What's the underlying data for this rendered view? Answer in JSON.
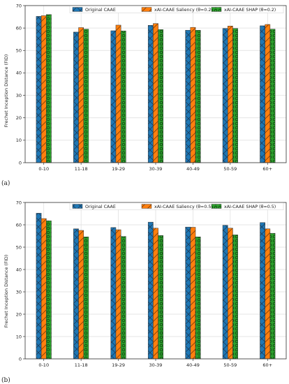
{
  "colors": {
    "original": "#1f77b4",
    "saliency": "#ff7f0e",
    "shap": "#2ca02c"
  },
  "chart_data": [
    {
      "panel_label": "(a)",
      "type": "bar",
      "categories": [
        "0-10",
        "11-18",
        "19-29",
        "30-39",
        "40-49",
        "50-59",
        "60+"
      ],
      "ylabel": "Frechet Inception Distance (FID)",
      "ylim": [
        0,
        70
      ],
      "yticks": [
        0,
        10,
        20,
        30,
        40,
        50,
        60,
        70
      ],
      "grid": true,
      "legend": "top",
      "series": [
        {
          "name": "Original CAAE",
          "color": "#1f77b4",
          "hatch": "cross",
          "values": [
            65.2,
            58.2,
            58.8,
            61.2,
            59.0,
            59.8,
            61.0
          ]
        },
        {
          "name": "xAI-CAAE Saliency (θ=0.2)",
          "color": "#ff7f0e",
          "hatch": "diag",
          "values": [
            65.5,
            60.2,
            61.3,
            62.0,
            60.3,
            60.9,
            61.6
          ]
        },
        {
          "name": "xAI-CAAE SHAP (θ=0.2)",
          "color": "#2ca02c",
          "hatch": "circle",
          "values": [
            66.0,
            59.5,
            58.7,
            59.3,
            59.0,
            59.8,
            59.5
          ]
        }
      ]
    },
    {
      "panel_label": "(b)",
      "type": "bar",
      "categories": [
        "0-10",
        "11-18",
        "19-29",
        "30-39",
        "40-49",
        "50-59",
        "60+"
      ],
      "ylabel": "Frechet Inception Distance (FID)",
      "ylim": [
        0,
        70
      ],
      "yticks": [
        0,
        10,
        20,
        30,
        40,
        50,
        60,
        70
      ],
      "grid": true,
      "legend": "top",
      "series": [
        {
          "name": "Original CAAE",
          "color": "#1f77b4",
          "hatch": "cross",
          "values": [
            65.2,
            58.2,
            58.8,
            61.2,
            59.0,
            59.8,
            61.0
          ]
        },
        {
          "name": "xAI-CAAE Saliency (θ=0.5)",
          "color": "#ff7f0e",
          "hatch": "diag",
          "values": [
            62.8,
            57.5,
            57.8,
            58.5,
            58.9,
            58.5,
            58.2
          ]
        },
        {
          "name": "xAI-CAAE SHAP (θ=0.5)",
          "color": "#2ca02c",
          "hatch": "circle",
          "values": [
            61.8,
            54.6,
            54.8,
            55.2,
            54.6,
            55.5,
            56.2
          ]
        }
      ]
    }
  ]
}
